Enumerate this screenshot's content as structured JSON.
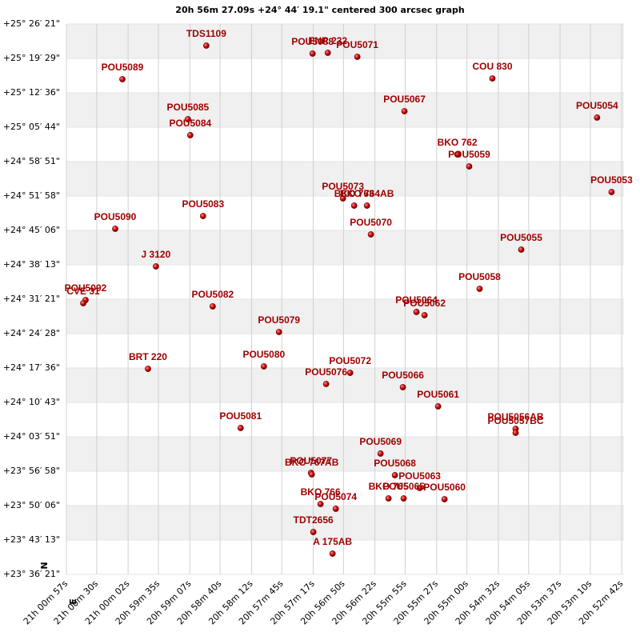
{
  "chart_data": {
    "type": "scatter",
    "title": "20h 56m 27.09s +24° 44′ 19.1\" centered 300 arcsec graph",
    "north_label": "N",
    "east_label": "E",
    "color": "#cc0000",
    "label_color": "#a00000",
    "grid": true,
    "xlim": [
      75657,
      75160
    ],
    "ylim": [
      84981,
      91581
    ],
    "xticks": [
      {
        "value": 75657,
        "label": "21h 00m 57s"
      },
      {
        "value": 75630,
        "label": "21h 00m 30s"
      },
      {
        "value": 75602,
        "label": "21h 00m 02s"
      },
      {
        "value": 75575,
        "label": "20h 59m 35s"
      },
      {
        "value": 75547,
        "label": "20h 59m 07s"
      },
      {
        "value": 75520,
        "label": "20h 58m 40s"
      },
      {
        "value": 75492,
        "label": "20h 58m 12s"
      },
      {
        "value": 75465,
        "label": "20h 57m 45s"
      },
      {
        "value": 75437,
        "label": "20h 57m 17s"
      },
      {
        "value": 75410,
        "label": "20h 56m 50s"
      },
      {
        "value": 75382,
        "label": "20h 56m 22s"
      },
      {
        "value": 75355,
        "label": "20h 55m 55s"
      },
      {
        "value": 75327,
        "label": "20h 55m 27s"
      },
      {
        "value": 75300,
        "label": "20h 55m 00s"
      },
      {
        "value": 75272,
        "label": "20h 54m 32s"
      },
      {
        "value": 75245,
        "label": "20h 54m 05s"
      },
      {
        "value": 75217,
        "label": "20h 53m 37s"
      },
      {
        "value": 75190,
        "label": "20h 53m 10s"
      },
      {
        "value": 75162,
        "label": "20h 52m 42s"
      }
    ],
    "yticks": [
      {
        "value": 91581,
        "label": "+25° 26′ 21\""
      },
      {
        "value": 91169,
        "label": "+25° 19′ 29\""
      },
      {
        "value": 90756,
        "label": "+25° 12′ 36\""
      },
      {
        "value": 90344,
        "label": "+25° 05′ 44\""
      },
      {
        "value": 89931,
        "label": "+24° 58′ 51\""
      },
      {
        "value": 89518,
        "label": "+24° 51′ 58\""
      },
      {
        "value": 89106,
        "label": "+24° 45′ 06\""
      },
      {
        "value": 88693,
        "label": "+24° 38′ 13\""
      },
      {
        "value": 88281,
        "label": "+24° 31′ 21\""
      },
      {
        "value": 87868,
        "label": "+24° 24′ 28\""
      },
      {
        "value": 87456,
        "label": "+24° 17′ 36\""
      },
      {
        "value": 87043,
        "label": "+24° 10′ 43\""
      },
      {
        "value": 86631,
        "label": "+24° 03′ 51\""
      },
      {
        "value": 86218,
        "label": "+23° 56′ 58\""
      },
      {
        "value": 85806,
        "label": "+23° 50′ 06\""
      },
      {
        "value": 85393,
        "label": "+23° 43′ 13\""
      },
      {
        "value": 84981,
        "label": "+23° 36′ 21\""
      }
    ],
    "point_labels": [
      "TDS1109",
      "POU5089",
      "POU5088",
      "ENR 232",
      "POU5071",
      "COU 830",
      "POU5067",
      "POU5054",
      "POU5085",
      "POU5084",
      "BKO 762",
      "POU5059",
      "POU5053",
      "POU5073",
      "BKO 763",
      "BKO 764AB",
      "POU5083",
      "POU5070",
      "POU5090",
      "POU5055",
      "J  3120",
      "POU5058",
      "POU5092",
      "CVE  31",
      "POU5082",
      "POU5064",
      "POU5062",
      "POU5079",
      "BRT 220",
      "POU5080",
      "POU5072",
      "POU5076",
      "POU5066",
      "POU5061",
      "POU5056AB",
      "POU5057BC",
      "POU5081",
      "POU5069",
      "POU5077",
      "BKO 767AB",
      "POU5068",
      "POU5063",
      "BKO 765",
      "POU5065",
      "POU5060",
      "BKO 766",
      "POU5074",
      "TDT2656",
      "A  175AB"
    ],
    "x": [
      75532.3,
      75607.1,
      75437.6,
      75424.0,
      75397.7,
      75277.3,
      75355.7,
      75184.0,
      75548.7,
      75546.6,
      75308.6,
      75298.0,
      75171.1,
      75410.5,
      75400.5,
      75389.1,
      75535.2,
      75385.6,
      75613.5,
      75251.6,
      75577.2,
      75288.7,
      75639.9,
      75642.0,
      75526.6,
      75345.0,
      75337.8,
      75467.5,
      75584.3,
      75481.0,
      75404.1,
      75425.5,
      75357.1,
      75325.7,
      75256.6,
      75256.6,
      75501.7,
      75377.0,
      75439.0,
      75438.3,
      75364.2,
      75342.1,
      75369.9,
      75356.4,
      75320.0,
      75430.5,
      75416.9,
      75436.9,
      75419.8
    ],
    "values": [
      91322,
      90919,
      91226,
      91236,
      91188,
      90929,
      90535,
      90459,
      90439,
      90248,
      90017,
      89873,
      89566,
      89490,
      89403,
      89403,
      89279,
      89058,
      89125,
      88876,
      88674,
      88406,
      88271,
      88233,
      88195,
      88128,
      88089,
      87888,
      87446,
      87475,
      87398,
      87264,
      87226,
      86996,
      86727,
      86679,
      86737,
      86430,
      86199,
      86180,
      86171,
      86017,
      85892,
      85892,
      85883,
      85825,
      85768,
      85489,
      85230
    ]
  }
}
